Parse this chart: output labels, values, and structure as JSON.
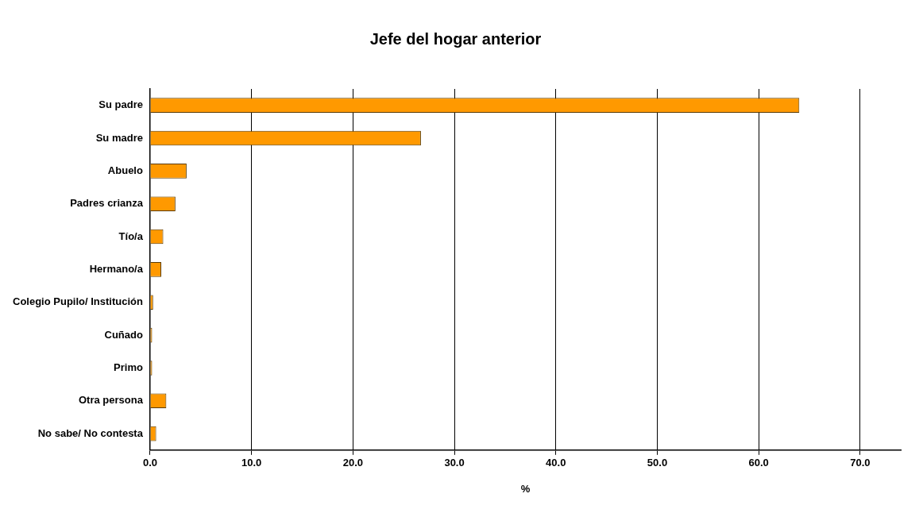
{
  "chart_data": {
    "type": "bar",
    "orientation": "horizontal",
    "title": "Jefe del hogar anterior",
    "xlabel": "%",
    "categories": [
      "Su padre",
      "Su madre",
      "Abuelo",
      "Padres crianza",
      "Tío/a",
      "Hermano/a",
      "Colegio Pupilo/ Institución",
      "Cuñado",
      "Primo",
      "Otra persona",
      "No sabe/ No contesta"
    ],
    "values": [
      64.0,
      26.7,
      3.6,
      2.5,
      1.3,
      1.1,
      0.3,
      0.2,
      0.2,
      1.6,
      0.6
    ],
    "color": "#ff9900",
    "xlim": [
      0,
      74
    ],
    "xticks": [
      {
        "value": 0,
        "label": "0.0"
      },
      {
        "value": 10,
        "label": "10.0"
      },
      {
        "value": 20,
        "label": "20.0"
      },
      {
        "value": 30,
        "label": "30.0"
      },
      {
        "value": 40,
        "label": "40.0"
      },
      {
        "value": 50,
        "label": "50.0"
      },
      {
        "value": 60,
        "label": "60.0"
      },
      {
        "value": 70,
        "label": "70.0"
      }
    ],
    "grid": "x",
    "legend": false
  }
}
